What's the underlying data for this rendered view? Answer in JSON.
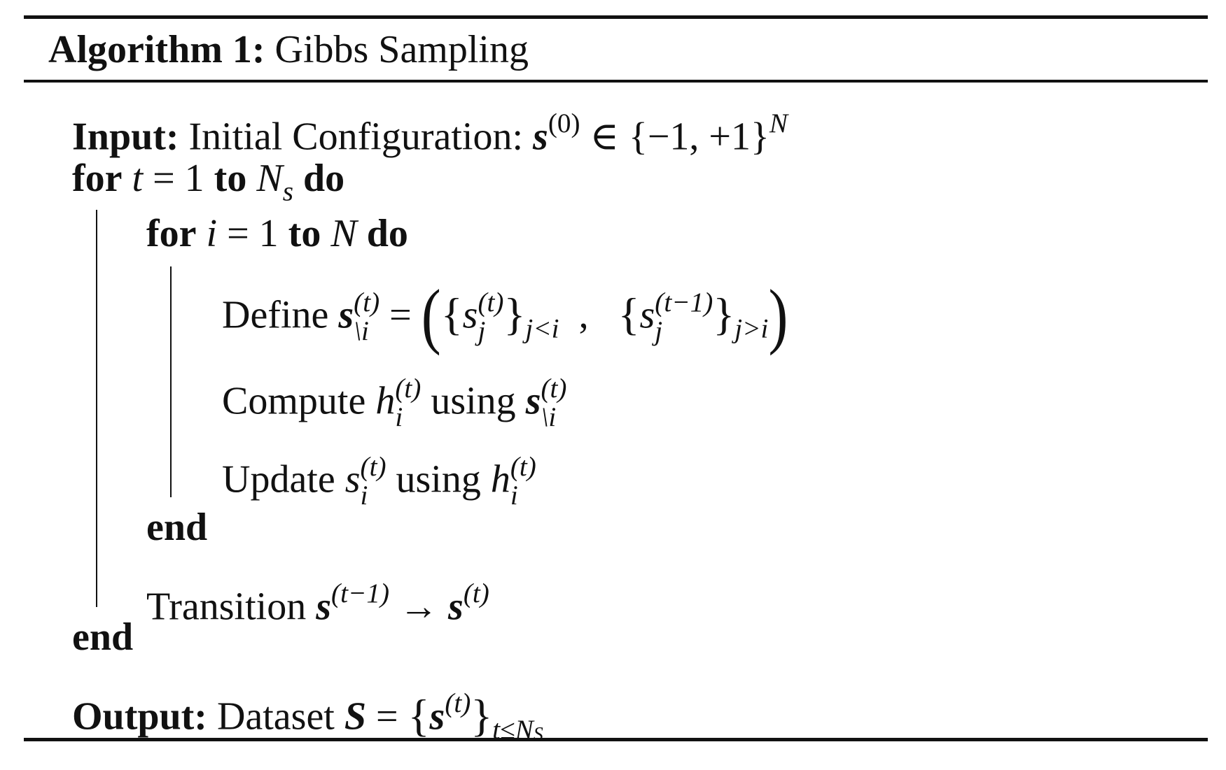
{
  "header": {
    "label": "Algorithm 1:",
    "title": "Gibbs Sampling"
  },
  "lines": [
    [
      "Input:",
      "Initial Configuration:",
      "s",
      "(0)",
      "∈ {−1, +1}",
      "N"
    ],
    [
      "for",
      "t",
      "= 1",
      "to",
      "N",
      "s",
      "do"
    ],
    [
      "for",
      "i",
      "= 1",
      "to",
      "N",
      "do"
    ],
    [
      "Define",
      "s",
      "(t)",
      "\\i",
      "=",
      "(",
      "{",
      "s",
      "(t)",
      "j",
      "}",
      "j<i",
      ",",
      "{",
      "s",
      "(t−1)",
      "j",
      "}",
      "j>i",
      ")"
    ],
    [
      "Compute",
      "h",
      "(t)",
      "i",
      "using",
      "s",
      "(t)",
      "\\i"
    ],
    [
      "Update",
      "s",
      "(t)",
      "i",
      "using",
      "h",
      "(t)",
      "i"
    ],
    [
      "end"
    ],
    [
      "Transition",
      "s",
      "(t−1)",
      "→",
      "s",
      "(t)"
    ],
    [
      "end"
    ],
    [
      "Output:",
      "Dataset",
      "S",
      "=",
      "{",
      "s",
      "(t)",
      "}",
      "t≤N",
      "S"
    ]
  ]
}
